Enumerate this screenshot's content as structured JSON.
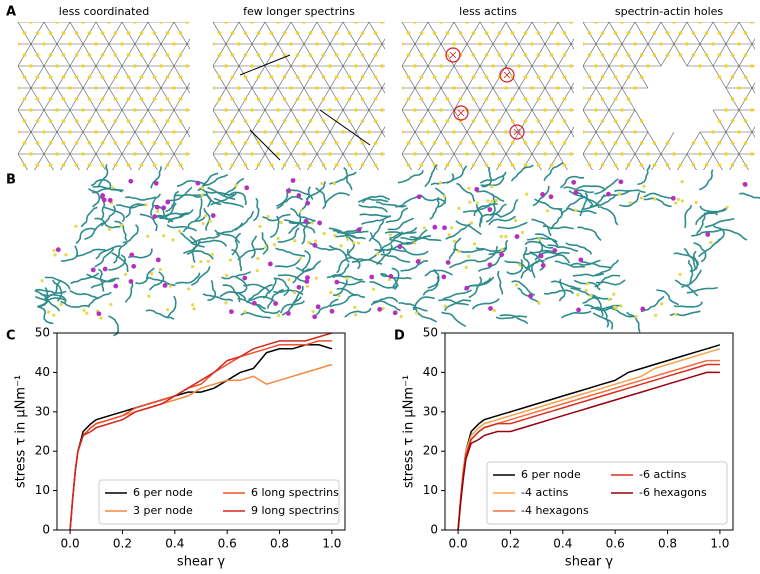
{
  "panel_labels": [
    "A",
    "B",
    "C",
    "D"
  ],
  "lattice_titles": [
    "less coordinated",
    "few longer spectrins",
    "less actins",
    "spectrin-actin holes"
  ],
  "chart_data": [
    {
      "type": "line",
      "x_label": "shear γ",
      "y_label": "stress τ in μNm⁻¹",
      "x": [
        0,
        0.01,
        0.02,
        0.03,
        0.05,
        0.08,
        0.1,
        0.15,
        0.2,
        0.25,
        0.3,
        0.35,
        0.4,
        0.45,
        0.5,
        0.55,
        0.6,
        0.65,
        0.7,
        0.75,
        0.8,
        0.85,
        0.9,
        0.95,
        1.0
      ],
      "xlim": [
        -0.05,
        1.05
      ],
      "ylim": [
        0,
        50
      ],
      "xticks": [
        {
          "value": 0,
          "label": "0.0"
        },
        {
          "value": 0.2,
          "label": "0.2"
        },
        {
          "value": 0.4,
          "label": "0.4"
        },
        {
          "value": 0.6,
          "label": "0.6"
        },
        {
          "value": 0.8,
          "label": "0.8"
        },
        {
          "value": 1.0,
          "label": "1.0"
        }
      ],
      "yticks": [
        0,
        10,
        20,
        30,
        40,
        50
      ],
      "grid": false,
      "legend_position": "lower right",
      "series": [
        {
          "name": "6 per node",
          "color": "#000000",
          "values": [
            0,
            8,
            15,
            20,
            25,
            27,
            28,
            29,
            30,
            31,
            32,
            33,
            34,
            35,
            35,
            36,
            38,
            40,
            41,
            45,
            46,
            46,
            47,
            47,
            46
          ]
        },
        {
          "name": "3 per node",
          "color": "#f4893f",
          "values": [
            0,
            8,
            15,
            20,
            24,
            26,
            27,
            28,
            29,
            30,
            31,
            32,
            33,
            34,
            36,
            37,
            38,
            38,
            39,
            37,
            38,
            39,
            40,
            41,
            42
          ]
        },
        {
          "name": "6 long spectrins",
          "color": "#f0502a",
          "values": [
            0,
            8,
            15,
            20,
            24,
            26,
            27,
            28,
            29,
            31,
            32,
            33,
            34,
            36,
            37,
            40,
            42,
            44,
            45,
            46,
            47,
            47,
            47,
            48,
            48
          ]
        },
        {
          "name": "9 long spectrins",
          "color": "#d7261e",
          "values": [
            0,
            8,
            15,
            20,
            24,
            25,
            26,
            27,
            28,
            30,
            31,
            32,
            34,
            36,
            38,
            40,
            43,
            44,
            46,
            47,
            48,
            48,
            48,
            49,
            50
          ]
        }
      ]
    },
    {
      "type": "line",
      "x_label": "shear γ",
      "y_label": "stress τ in μNm⁻¹",
      "x": [
        0,
        0.01,
        0.02,
        0.03,
        0.05,
        0.08,
        0.1,
        0.15,
        0.2,
        0.25,
        0.3,
        0.35,
        0.4,
        0.45,
        0.5,
        0.55,
        0.6,
        0.65,
        0.7,
        0.75,
        0.8,
        0.85,
        0.9,
        0.95,
        1.0
      ],
      "xlim": [
        -0.05,
        1.05
      ],
      "ylim": [
        0,
        50
      ],
      "xticks": [
        {
          "value": 0,
          "label": "0.0"
        },
        {
          "value": 0.2,
          "label": "0.2"
        },
        {
          "value": 0.4,
          "label": "0.4"
        },
        {
          "value": 0.6,
          "label": "0.6"
        },
        {
          "value": 0.8,
          "label": "0.8"
        },
        {
          "value": 1.0,
          "label": "1.0"
        }
      ],
      "yticks": [
        0,
        10,
        20,
        30,
        40,
        50
      ],
      "grid": false,
      "legend_position": "lower right",
      "series": [
        {
          "name": "6 per node",
          "color": "#000000",
          "values": [
            0,
            8,
            15,
            20,
            25,
            27,
            28,
            29,
            30,
            31,
            32,
            33,
            34,
            35,
            36,
            37,
            38,
            40,
            41,
            42,
            43,
            44,
            45,
            46,
            47
          ]
        },
        {
          "name": "-4 actins",
          "color": "#f9a24a",
          "values": [
            0,
            8,
            15,
            20,
            24,
            26,
            27,
            28,
            29,
            30,
            31,
            32,
            33,
            34,
            35,
            36,
            37,
            38,
            39,
            41,
            42,
            43,
            44,
            45,
            46
          ]
        },
        {
          "name": "-4 hexagons",
          "color": "#f46d43",
          "values": [
            0,
            8,
            15,
            19,
            23,
            25,
            26,
            27,
            28,
            29,
            30,
            31,
            32,
            33,
            34,
            35,
            36,
            37,
            38,
            39,
            40,
            41,
            42,
            43,
            43
          ]
        },
        {
          "name": "-6 actins",
          "color": "#d7301f",
          "values": [
            0,
            8,
            14,
            19,
            23,
            25,
            26,
            27,
            27,
            28,
            29,
            30,
            31,
            32,
            33,
            34,
            35,
            36,
            37,
            38,
            39,
            40,
            41,
            42,
            42
          ]
        },
        {
          "name": "-6 hexagons",
          "color": "#99000d",
          "values": [
            0,
            7,
            13,
            18,
            22,
            23,
            24,
            25,
            25,
            26,
            27,
            28,
            29,
            30,
            31,
            32,
            33,
            34,
            35,
            36,
            37,
            38,
            39,
            40,
            40
          ]
        }
      ]
    }
  ]
}
